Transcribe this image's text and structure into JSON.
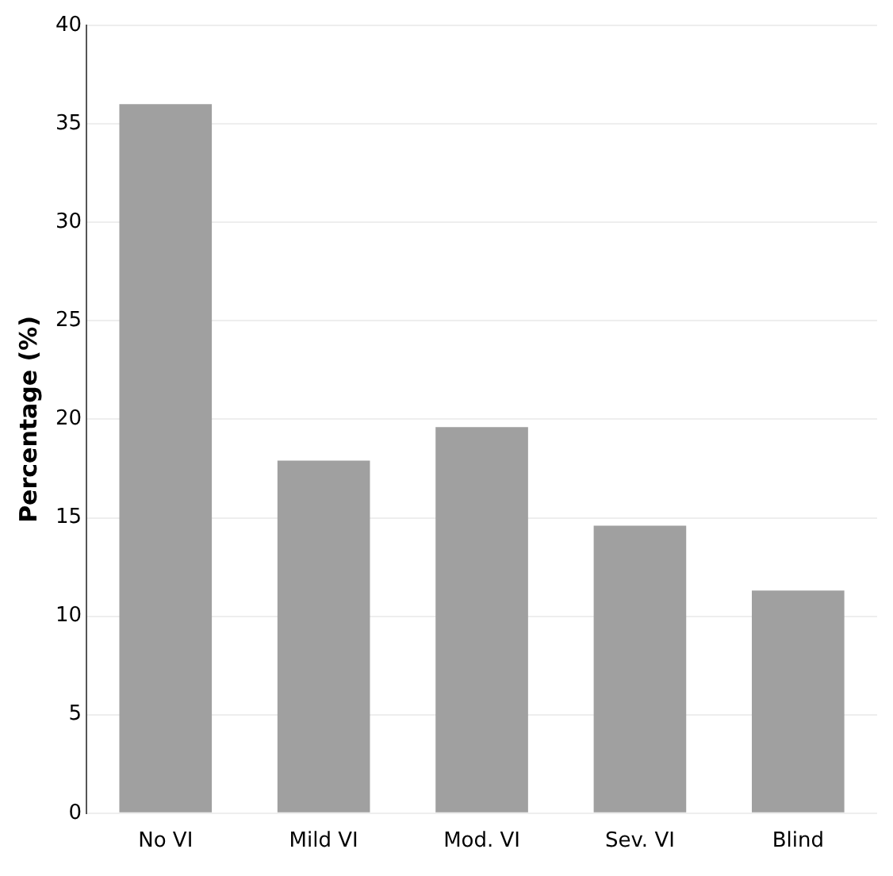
{
  "chart_data": {
    "type": "bar",
    "ylabel": "Percentage (%)",
    "categories": [
      "No VI",
      "Mild VI",
      "Mod. VI",
      "Sev. VI",
      "Blind"
    ],
    "values": [
      36,
      17.9,
      19.6,
      14.6,
      11.3
    ],
    "color": "#a0a0a0",
    "ylim": [
      0,
      40
    ],
    "yticks": [
      0,
      5,
      10,
      15,
      20,
      25,
      30,
      35,
      40
    ],
    "grid": "y",
    "legend": false
  }
}
